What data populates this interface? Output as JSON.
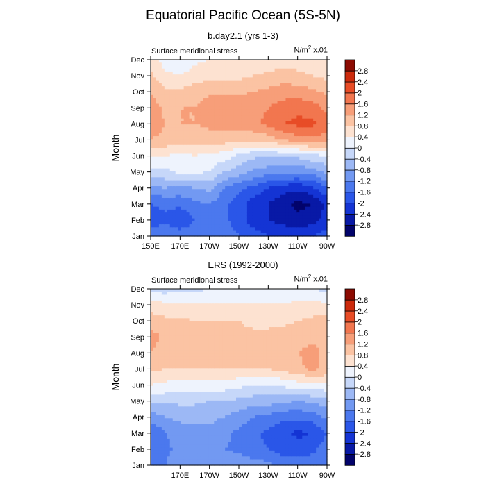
{
  "title": "Equatorial Pacific Ocean (5S-5N)",
  "chart_data": [
    {
      "type": "heatmap",
      "panel_title": "b.day2.1 (yrs 1-3)",
      "field_label": "Surface meridional stress",
      "units_prefix": "N/m",
      "units_sup": "2",
      "units_suffix": " x.01",
      "ylabel": "Month",
      "x_tick_labels": [
        "150E",
        "170E",
        "170W",
        "150W",
        "130W",
        "110W",
        "90W"
      ],
      "x_range": [
        150,
        270
      ],
      "y_tick_labels": [
        "Jan",
        "Feb",
        "Mar",
        "Apr",
        "May",
        "Jun",
        "Jul",
        "Aug",
        "Sep",
        "Oct",
        "Nov",
        "Dec"
      ],
      "x_lon": [
        150,
        160,
        170,
        180,
        190,
        200,
        210,
        220,
        230,
        240,
        250,
        260,
        270
      ],
      "values": [
        [
          -1.2,
          -1.3,
          -1.3,
          -1.3,
          -1.3,
          -1.4,
          -1.6,
          -1.8,
          -2.0,
          -2.0,
          -2.0,
          -2.0,
          -1.8
        ],
        [
          -1.9,
          -1.7,
          -2.0,
          -1.6,
          -1.3,
          -1.5,
          -1.8,
          -2.2,
          -2.4,
          -2.6,
          -2.7,
          -2.6,
          -2.2
        ],
        [
          -1.6,
          -1.5,
          -1.5,
          -1.3,
          -1.2,
          -1.5,
          -1.8,
          -2.2,
          -2.4,
          -2.7,
          -2.9,
          -2.8,
          -2.3
        ],
        [
          -0.9,
          -0.8,
          -0.9,
          -0.8,
          -0.7,
          -1.2,
          -1.5,
          -1.7,
          -2.0,
          -2.2,
          -2.3,
          -2.1,
          -1.6
        ],
        [
          -0.2,
          -0.1,
          0.1,
          0.1,
          0.0,
          -0.4,
          -0.6,
          -0.9,
          -1.0,
          -1.1,
          -1.1,
          -1.0,
          -0.7
        ],
        [
          0.5,
          0.4,
          0.3,
          0.4,
          0.3,
          0.2,
          -0.1,
          -0.3,
          -0.4,
          -0.3,
          -0.3,
          -0.1,
          0.0
        ],
        [
          1.2,
          1.1,
          1.0,
          1.0,
          1.0,
          1.0,
          0.9,
          0.9,
          1.0,
          1.2,
          1.4,
          1.5,
          1.4
        ],
        [
          1.4,
          1.2,
          1.2,
          1.2,
          1.3,
          1.3,
          1.4,
          1.5,
          1.7,
          2.0,
          2.1,
          2.1,
          1.8
        ],
        [
          1.4,
          1.1,
          1.2,
          1.2,
          1.5,
          1.5,
          1.5,
          1.5,
          1.6,
          1.8,
          1.9,
          1.8,
          1.5
        ],
        [
          1.2,
          0.9,
          0.9,
          1.0,
          1.1,
          1.1,
          1.1,
          1.2,
          1.3,
          1.4,
          1.4,
          1.3,
          1.1
        ],
        [
          0.9,
          0.5,
          0.4,
          0.6,
          0.7,
          0.7,
          0.7,
          0.8,
          0.9,
          1.0,
          0.9,
          0.8,
          0.7
        ],
        [
          0.6,
          0.2,
          0.1,
          0.3,
          0.4,
          0.4,
          0.4,
          0.5,
          0.5,
          0.6,
          0.6,
          0.5,
          0.5
        ]
      ]
    },
    {
      "type": "heatmap",
      "panel_title": "ERS (1992-2000)",
      "field_label": "Surface meridional stress",
      "units_prefix": "N/m",
      "units_sup": "2",
      "units_suffix": " x.01",
      "ylabel": "Month",
      "x_tick_labels": [
        "170E",
        "170W",
        "150W",
        "130W",
        "110W",
        "90W"
      ],
      "x_range": [
        150,
        270
      ],
      "y_tick_labels": [
        "Jan",
        "Feb",
        "Mar",
        "Apr",
        "May",
        "Jun",
        "Jul",
        "Aug",
        "Sep",
        "Oct",
        "Nov",
        "Dec"
      ],
      "x_lon": [
        150,
        160,
        170,
        180,
        190,
        200,
        210,
        220,
        230,
        240,
        250,
        260,
        270
      ],
      "values": [
        [
          -1.3,
          -1.2,
          -0.9,
          -0.9,
          -0.8,
          -0.8,
          -0.9,
          -1.0,
          -1.1,
          -1.3,
          -1.4,
          -1.4,
          -1.2
        ],
        [
          -1.5,
          -1.3,
          -1.1,
          -1.0,
          -1.0,
          -1.2,
          -1.3,
          -1.5,
          -1.6,
          -1.8,
          -1.8,
          -1.7,
          -1.4
        ],
        [
          -1.6,
          -1.2,
          -1.0,
          -0.9,
          -0.9,
          -1.1,
          -1.3,
          -1.5,
          -1.7,
          -1.9,
          -2.1,
          -2.0,
          -1.6
        ],
        [
          -1.0,
          -0.8,
          -0.7,
          -0.7,
          -0.7,
          -0.8,
          -1.0,
          -1.2,
          -1.3,
          -1.5,
          -1.5,
          -1.4,
          -1.1
        ],
        [
          -0.3,
          -0.3,
          -0.3,
          -0.3,
          -0.4,
          -0.4,
          -0.5,
          -0.6,
          -0.6,
          -0.7,
          -0.8,
          -0.7,
          -0.6
        ],
        [
          0.4,
          0.3,
          0.2,
          0.2,
          0.2,
          0.2,
          0.1,
          0.0,
          0.0,
          0.1,
          0.2,
          0.3,
          0.3
        ],
        [
          0.9,
          0.8,
          0.8,
          0.8,
          0.8,
          0.8,
          0.8,
          0.8,
          0.8,
          0.9,
          1.1,
          1.3,
          1.1
        ],
        [
          1.2,
          1.0,
          1.0,
          1.0,
          1.0,
          1.0,
          1.0,
          1.0,
          1.0,
          1.1,
          1.2,
          1.3,
          1.1
        ],
        [
          1.4,
          1.1,
          1.0,
          1.0,
          1.0,
          0.9,
          0.9,
          0.9,
          0.9,
          1.0,
          1.1,
          1.1,
          1.2
        ],
        [
          1.0,
          0.9,
          0.9,
          0.8,
          0.8,
          0.8,
          0.8,
          0.7,
          0.7,
          0.7,
          0.8,
          0.9,
          1.0
        ],
        [
          0.6,
          0.5,
          0.5,
          0.4,
          0.4,
          0.4,
          0.4,
          0.4,
          0.4,
          0.4,
          0.5,
          0.5,
          0.5
        ],
        [
          -0.2,
          -0.2,
          -0.1,
          -0.1,
          0.0,
          0.0,
          0.0,
          0.1,
          0.1,
          0.1,
          0.1,
          0.0,
          -0.1
        ]
      ]
    }
  ],
  "colorbar": {
    "levels": [
      -2.8,
      -2.4,
      -2,
      -1.6,
      -1.2,
      -0.8,
      -0.4,
      0,
      0.4,
      0.8,
      1.2,
      1.6,
      2,
      2.4,
      2.8
    ],
    "colors": [
      "#02036b",
      "#0819a6",
      "#1434d4",
      "#2a56e8",
      "#4b78ee",
      "#7299f2",
      "#9cb8f5",
      "#c6d7f9",
      "#eef3fd",
      "#fde2d1",
      "#fbc3a3",
      "#f79e79",
      "#f2764f",
      "#e84c26",
      "#cc2a0c",
      "#8c0b02"
    ]
  }
}
